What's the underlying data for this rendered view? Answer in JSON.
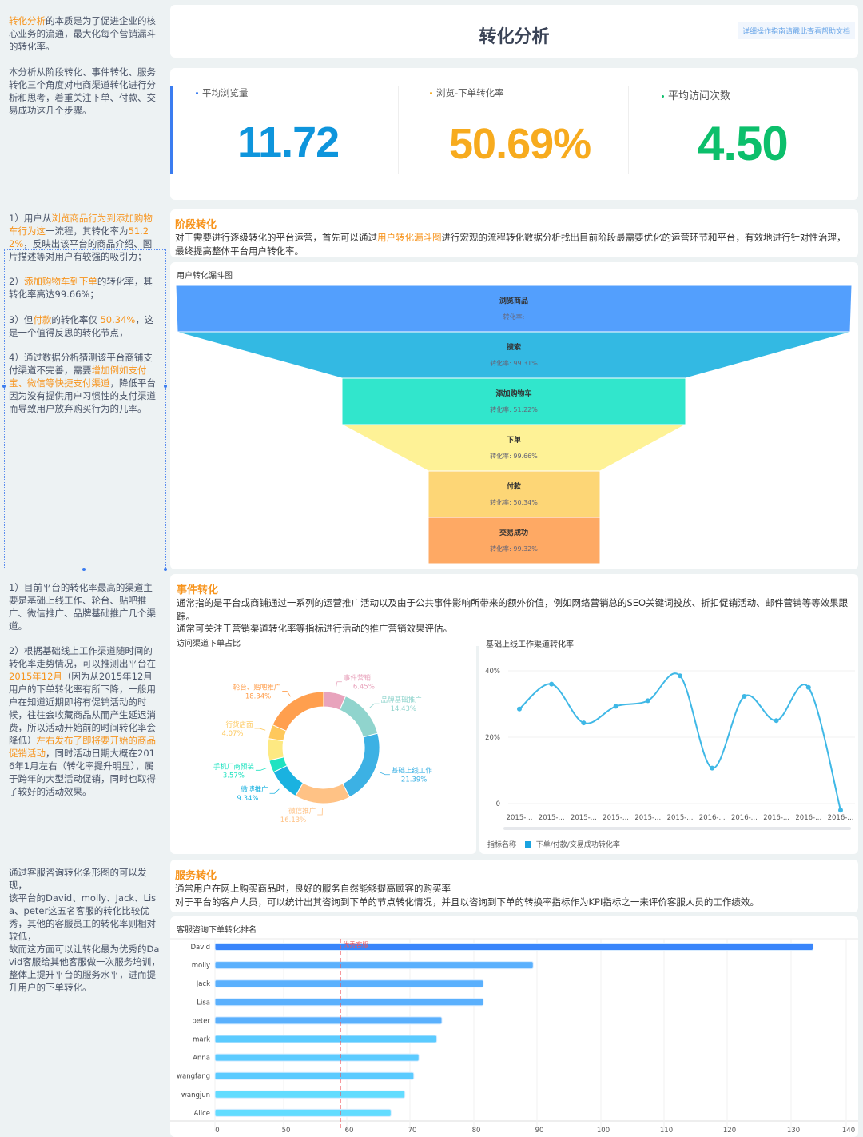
{
  "header": {
    "title": "转化分析",
    "help_link": "详细操作指南请戳此查看帮助文档"
  },
  "left_notes": {
    "intro": [
      {
        "t": "转化分析",
        "hl": true
      },
      {
        "t": "的本质是为了促进企业的核心业务的流通，最大化每个营销漏斗的转化率。"
      }
    ],
    "intro2": [
      {
        "t": "本分析从阶段转化、事件转化、服务转化三个角度对电商渠道转化进行分析和思考，着重关注下单、付款、交易成功这几个步骤。"
      }
    ],
    "stage1": [
      {
        "t": "1）用户从"
      },
      {
        "t": "浏览商品行为到添加购物车行为这",
        "hl": true
      },
      {
        "t": "一流程，其转化率为"
      },
      {
        "t": "51.22%",
        "hl": true
      },
      {
        "t": "，反映出该平台的商品介绍、图片描述等对用户有较强的吸引力；"
      }
    ],
    "stage2": [
      {
        "t": "2）"
      },
      {
        "t": "添加购物车到下单",
        "hl": true
      },
      {
        "t": "的转化率，其转化率高达99.66%；"
      }
    ],
    "stage3": [
      {
        "t": "3）但"
      },
      {
        "t": "付款",
        "hl": true
      },
      {
        "t": "的转化率仅 "
      },
      {
        "t": "50.34%",
        "hl": true
      },
      {
        "t": "，这是一个值得反思的转化节点，"
      }
    ],
    "stage4": [
      {
        "t": "4）通过数据分析猜测该平台商铺支付渠道不完善，需要"
      },
      {
        "t": "增加例如支付宝、微信等快捷支付渠道",
        "hl": true
      },
      {
        "t": "，降低平台因为没有提供用户习惯性的支付渠道而导致用户放弃购买行为的几率。"
      }
    ],
    "event1": [
      {
        "t": "1）目前平台的转化率最高的渠道主要是基础上线工作、轮台、贴吧推广、微信推广、品牌基础推广几个渠道。"
      }
    ],
    "event2": [
      {
        "t": "2）根据基础线上工作渠道随时间的转化率走势情况，可以推测出平台在"
      },
      {
        "t": "2015年12月",
        "hl": true
      },
      {
        "t": "（因为从2015年12月用户的下单转化率有所下降，一般用户在知道近期即将有促销活动的时候，往往会收藏商品从而产生延迟消费，所以活动开始前的时间转化率会降低）"
      },
      {
        "t": "左右发布了即将要开始的商品促销活动",
        "hl": true
      },
      {
        "t": "，同时活动日期大概在2016年1月左右（转化率提升明显），属于跨年的大型活动促销，同时也取得了较好的活动效果。"
      }
    ],
    "service": [
      {
        "t": "通过客服咨询转化条形图的可以发现，\n该平台的David、molly、Jack、Lisa、peter这五名客服的转化比较优秀，其他的客服员工的转化率则相对较低，\n故而这方面可以让转化最为优秀的David客服给其他客服做一次服务培训，整体上提升平台的服务水平，进而提升用户的下单转化。"
      }
    ]
  },
  "kpis": [
    {
      "label": "平均浏览量",
      "value": "11.72",
      "color": "#0e95dc"
    },
    {
      "label": "浏览-下单转化率",
      "value": "50.69%",
      "color": "#f7ab1e"
    },
    {
      "label": "平均访问次数",
      "value": "4.50",
      "color": "#0cbf6b"
    }
  ],
  "stage": {
    "title": "阶段转化",
    "text": [
      {
        "t": "对于需要进行逐级转化的平台运营，首先可以通过"
      },
      {
        "t": "用户转化漏斗图",
        "hl": true
      },
      {
        "t": "进行宏观的流程转化数据分析找出目前阶段最需要优化的运营环节和平台，有效地进行针对性治理，最终提高整体平台用户转化率。"
      }
    ]
  },
  "event": {
    "title": "事件转化",
    "text1": "通常指的是平台或商铺通过一系列的运营推广活动以及由于公共事件影响所带来的额外价值，例如网络营销总的SEO关键词投放、折扣促销活动、邮件营销等等效果跟踪。",
    "text2": "通常可关注于营销渠道转化率等指标进行活动的推广营销效果评估。"
  },
  "service": {
    "title": "服务转化",
    "text1": "通常用户在网上购买商品时，良好的服务自然能够提高顾客的购买率",
    "text2": "对于平台的客户人员，可以统计出其咨询到下单的节点转化情况，并且以咨询到下单的转换率指标作为KPI指标之一来评价客服人员的工作绩效。"
  },
  "chart_data": [
    {
      "type": "funnel",
      "title": "用户转化漏斗图",
      "rate_label": "转化率:",
      "stages": [
        {
          "name": "浏览商品",
          "rate": "",
          "color": "#539ffd"
        },
        {
          "name": "搜索",
          "rate": "99.31%",
          "color": "#33b9e3"
        },
        {
          "name": "添加购物车",
          "rate": "51.22%",
          "color": "#31e6cc"
        },
        {
          "name": "下单",
          "rate": "99.66%",
          "color": "#fef296"
        },
        {
          "name": "付款",
          "rate": "50.34%",
          "color": "#fdd676"
        },
        {
          "name": "交易成功",
          "rate": "99.32%",
          "color": "#fea964"
        }
      ]
    },
    {
      "type": "pie",
      "title": "访问渠道下单占比",
      "donut": true,
      "slices": [
        {
          "name": "事件营销",
          "value": 6.45,
          "label": "6.45%",
          "color": "#e8a3bc"
        },
        {
          "name": "品牌基础推广",
          "value": 14.43,
          "label": "14.43%",
          "color": "#90d4cd"
        },
        {
          "name": "基础上线工作",
          "value": 21.39,
          "label": "21.39%",
          "color": "#3cb1e4"
        },
        {
          "name": "微信推广",
          "value": 16.13,
          "label": "16.13%",
          "color": "#ffc285"
        },
        {
          "name": "微博推广",
          "value": 9.34,
          "label": "9.34%",
          "color": "#1ab2e0"
        },
        {
          "name": "手机厂商预装",
          "value": 3.57,
          "label": "3.57%",
          "color": "#1fe3c1"
        },
        {
          "name": "",
          "value": 6.28,
          "label": "",
          "color": "#fde982"
        },
        {
          "name": "行货店面",
          "value": 4.07,
          "label": "4.07%",
          "color": "#fec85c"
        },
        {
          "name": "轮台、贴吧推广",
          "value": 18.34,
          "label": "18.34%",
          "color": "#ff9f4e"
        }
      ]
    },
    {
      "type": "line",
      "title": "基础上线工作渠道转化率",
      "smooth": true,
      "color": "#3fb8e6",
      "x": [
        "2015-...",
        "2015-...",
        "2015-...",
        "2015-...",
        "2015-...",
        "2015-...",
        "2016-...",
        "2016-...",
        "2016-...",
        "2016-...",
        "2016-..."
      ],
      "values": [
        28.5,
        36,
        24.3,
        29.3,
        31,
        38.5,
        10.7,
        32.3,
        25,
        35,
        -2
      ],
      "yticks": [
        "0",
        "20%",
        "40%"
      ],
      "ylim": [
        0,
        40
      ],
      "grid": true,
      "legend": {
        "title": "指标名称",
        "name": "下单/付款/交易成功转化率",
        "placement": "bottom-left"
      }
    },
    {
      "type": "bar",
      "orientation": "horizontal",
      "title": "客服咨询下单转化排名",
      "categories": [
        "David",
        "molly",
        "Jack",
        "Lisa",
        "peter",
        "mark",
        "Anna",
        "wangfang",
        "wangjun",
        "Alice"
      ],
      "values": [
        134,
        89.4,
        81.5,
        81.5,
        75,
        74.2,
        71.4,
        70.6,
        69.2,
        67
      ],
      "xticks": [
        0,
        50,
        60,
        70,
        80,
        90,
        100,
        110,
        120,
        130,
        140
      ],
      "markline": {
        "label": "优秀客服",
        "value": 59,
        "color": "#f0545a"
      },
      "colors": [
        "#3a86fb",
        "#5ab0fd",
        "#62dcff"
      ]
    }
  ]
}
